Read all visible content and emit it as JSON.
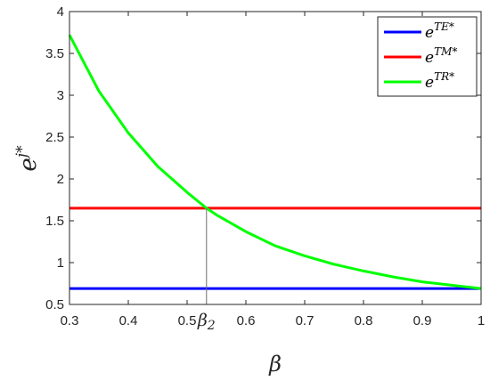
{
  "chart_data": {
    "type": "line",
    "xlabel": "β",
    "ylabel_base": "e",
    "ylabel_sup": "j*",
    "xlim": [
      0.3,
      1.0
    ],
    "ylim": [
      0.5,
      4.0
    ],
    "xticks": [
      "0.3",
      "0.4",
      "0.5",
      "0.6",
      "0.7",
      "0.8",
      "0.9",
      "1"
    ],
    "yticks": [
      "0.5",
      "1",
      "1.5",
      "2",
      "2.5",
      "3",
      "3.5",
      "4"
    ],
    "grid": false,
    "legend": "top-right",
    "series": [
      {
        "name_base": "e",
        "name_sup": "TE*",
        "color": "#0000ff",
        "x": [
          0.3,
          1.0
        ],
        "y": [
          0.69,
          0.69
        ]
      },
      {
        "name_base": "e",
        "name_sup": "TM*",
        "color": "#ff0000",
        "x": [
          0.3,
          1.0
        ],
        "y": [
          1.65,
          1.65
        ]
      },
      {
        "name_base": "e",
        "name_sup": "TR*",
        "color": "#00ff00",
        "x": [
          0.3,
          0.35,
          0.4,
          0.45,
          0.5,
          0.533,
          0.55,
          0.6,
          0.65,
          0.7,
          0.75,
          0.8,
          0.85,
          0.9,
          0.95,
          1.0
        ],
        "y": [
          3.72,
          3.05,
          2.55,
          2.15,
          1.84,
          1.65,
          1.57,
          1.37,
          1.2,
          1.08,
          0.98,
          0.9,
          0.83,
          0.77,
          0.73,
          0.69
        ]
      }
    ],
    "annotation": {
      "label": "β",
      "label_sub": "2",
      "x": 0.533,
      "y": 1.65
    }
  }
}
